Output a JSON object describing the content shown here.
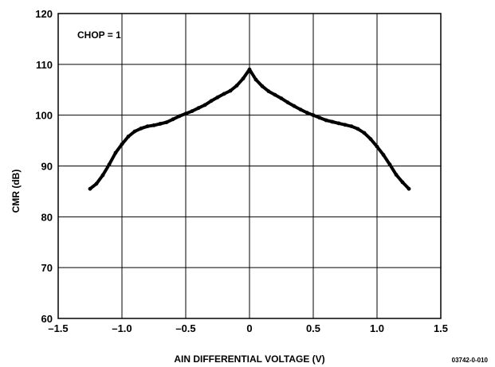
{
  "chart_data": {
    "type": "line",
    "title": "",
    "xlabel": "AIN DIFFERENTIAL VOLTAGE (V)",
    "ylabel": "CMR (dB)",
    "xlim": [
      -1.5,
      1.5
    ],
    "ylim": [
      60,
      120
    ],
    "x_ticks": [
      -1.5,
      -1.0,
      -0.5,
      0,
      0.5,
      1.0,
      1.5
    ],
    "x_tick_labels": [
      "–1.5",
      "–1.0",
      "–0.5",
      "0",
      "0.5",
      "1.0",
      "1.5"
    ],
    "y_ticks": [
      60,
      70,
      80,
      90,
      100,
      110,
      120
    ],
    "y_tick_labels": [
      "60",
      "70",
      "80",
      "90",
      "100",
      "110",
      "120"
    ],
    "grid": true,
    "annotation": "CHOP = 1",
    "figure_id": "03742-0-010",
    "series": [
      {
        "color": "#000000",
        "x": [
          -1.25,
          -1.2,
          -1.15,
          -1.1,
          -1.05,
          -1.0,
          -0.95,
          -0.9,
          -0.85,
          -0.8,
          -0.75,
          -0.7,
          -0.65,
          -0.6,
          -0.55,
          -0.5,
          -0.45,
          -0.4,
          -0.35,
          -0.3,
          -0.25,
          -0.2,
          -0.15,
          -0.1,
          -0.05,
          0.0,
          0.05,
          0.1,
          0.15,
          0.2,
          0.25,
          0.3,
          0.35,
          0.4,
          0.45,
          0.5,
          0.55,
          0.6,
          0.65,
          0.7,
          0.75,
          0.8,
          0.85,
          0.9,
          0.95,
          1.0,
          1.05,
          1.1,
          1.15,
          1.2,
          1.25
        ],
        "y": [
          85.5,
          86.5,
          88.2,
          90.3,
          92.6,
          94.3,
          95.8,
          96.8,
          97.4,
          97.8,
          98.0,
          98.3,
          98.6,
          99.2,
          99.8,
          100.3,
          100.8,
          101.4,
          102.0,
          102.8,
          103.5,
          104.2,
          104.8,
          105.8,
          107.2,
          109.0,
          107.0,
          105.7,
          104.7,
          104.0,
          103.3,
          102.5,
          101.8,
          101.1,
          100.5,
          100.0,
          99.5,
          99.0,
          98.7,
          98.4,
          98.1,
          97.8,
          97.3,
          96.5,
          95.3,
          93.8,
          92.2,
          90.3,
          88.3,
          86.8,
          85.5
        ]
      }
    ]
  }
}
